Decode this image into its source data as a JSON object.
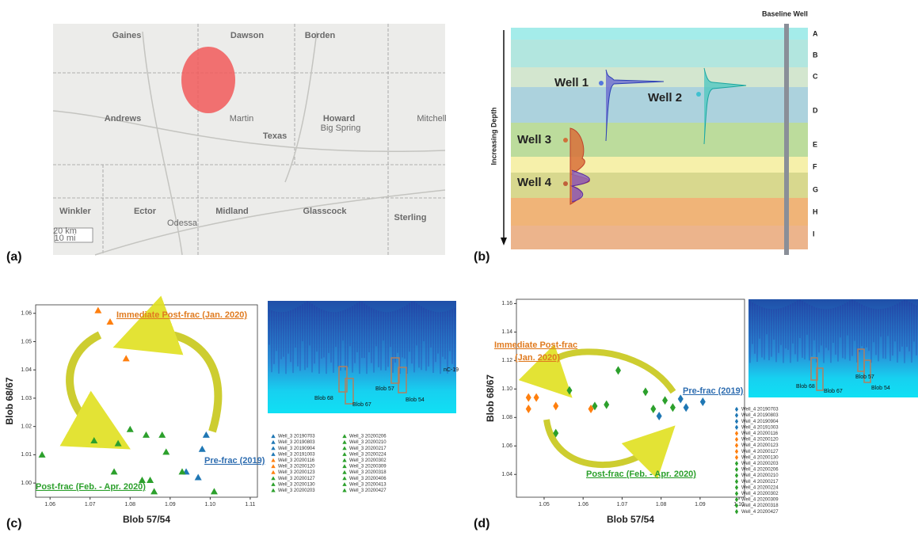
{
  "panel_labels": [
    "(a)",
    "(b)",
    "(c)",
    "(d)"
  ],
  "map": {
    "labels": [
      "Gaines",
      "Dawson",
      "Borden",
      "Andrews",
      "Martin",
      "Texas",
      "Howard",
      "Big Spring",
      "Mitchell",
      "Winkler",
      "Ector",
      "Midland",
      "Glasscock",
      "Sterling",
      "Odessa",
      "20 km",
      "10 mi"
    ]
  },
  "diagram": {
    "title": "Baseline Well",
    "axis_label": "Increasing Depth",
    "layers": [
      "A",
      "B",
      "C",
      "D",
      "E",
      "F",
      "G",
      "H",
      "I"
    ],
    "wells": [
      "Well 1",
      "Well 2",
      "Well 3",
      "Well 4"
    ]
  },
  "chart_data": [
    {
      "type": "scatter",
      "marker": "triangle",
      "xlabel": "Blob 57/54",
      "ylabel": "Blob 68/67",
      "xlim": [
        1.0564,
        1.1118
      ],
      "ylim": [
        0.995,
        1.063
      ],
      "xticks": [
        1.06,
        1.07,
        1.08,
        1.09,
        {
          "value": 1.1,
          "label": "1.10"
        },
        1.11
      ],
      "yticks": [
        {
          "value": 1,
          "label": "1.00"
        },
        1.01,
        1.02,
        1.03,
        1.04,
        1.05,
        1.06
      ],
      "inset_labels": [
        "Blob 68",
        "Blob 67",
        "Blob 57",
        "Blob 54",
        "nC-19"
      ],
      "annotations": [
        {
          "text": "Immediate Post-frac (Jan. 2020)",
          "color": "#e07b20"
        },
        {
          "text": "Pre-frac (2019)",
          "color": "#2e6db0"
        },
        {
          "text": "Post-frac (Feb. - Apr. 2020)",
          "color": "#2ca02c"
        }
      ],
      "series": [
        {
          "name": "Well_3 20190703",
          "color": "#1f77b4",
          "x": [
            1.099
          ],
          "values": [
            1.017
          ]
        },
        {
          "name": "Well_3 20190803",
          "color": "#1f77b4",
          "x": [
            1.098
          ],
          "values": [
            1.012
          ]
        },
        {
          "name": "Well_3 20190904",
          "color": "#1f77b4",
          "x": [
            1.094
          ],
          "values": [
            1.004
          ]
        },
        {
          "name": "Well_3 20191003",
          "color": "#1f77b4",
          "x": [
            1.097
          ],
          "values": [
            1.002
          ]
        },
        {
          "name": "Well_3 20200116",
          "color": "#ff7f0e",
          "x": [
            1.072
          ],
          "values": [
            1.061
          ]
        },
        {
          "name": "Well_3 20200120",
          "color": "#ff7f0e",
          "x": [
            1.075
          ],
          "values": [
            1.057
          ]
        },
        {
          "name": "Well_3 20200123",
          "color": "#ff7f0e",
          "x": [
            1.079
          ],
          "values": [
            1.044
          ]
        },
        {
          "name": "Well_3 20200127",
          "color": "#2ca02c",
          "x": [
            1.058
          ],
          "values": [
            1.01
          ]
        },
        {
          "name": "Well_3 20200130",
          "color": "#2ca02c",
          "x": [
            1.071
          ],
          "values": [
            1.015
          ]
        },
        {
          "name": "Well_3 20200203",
          "color": "#2ca02c",
          "x": [
            1.077
          ],
          "values": [
            1.014
          ]
        },
        {
          "name": "Well_3 20200206",
          "color": "#2ca02c",
          "x": [
            1.08
          ],
          "values": [
            1.019
          ]
        },
        {
          "name": "Well_3 20200210",
          "color": "#2ca02c",
          "x": [
            1.084
          ],
          "values": [
            1.017
          ]
        },
        {
          "name": "Well_3 20200217",
          "color": "#2ca02c",
          "x": [
            1.088
          ],
          "values": [
            1.017
          ]
        },
        {
          "name": "Well_3 20200224",
          "color": "#2ca02c",
          "x": [
            1.089
          ],
          "values": [
            1.011
          ]
        },
        {
          "name": "Well_3 20200302",
          "color": "#2ca02c",
          "x": [
            1.076
          ],
          "values": [
            1.004
          ]
        },
        {
          "name": "Well_3 20200309",
          "color": "#2ca02c",
          "x": [
            1.083
          ],
          "values": [
            1.001
          ]
        },
        {
          "name": "Well_3 20200318",
          "color": "#2ca02c",
          "x": [
            1.085
          ],
          "values": [
            1.001
          ]
        },
        {
          "name": "Well_3 20200406",
          "color": "#2ca02c",
          "x": [
            1.086
          ],
          "values": [
            0.997
          ]
        },
        {
          "name": "Well_3 20200413",
          "color": "#2ca02c",
          "x": [
            1.093
          ],
          "values": [
            1.004
          ]
        },
        {
          "name": "Well_3 20200427",
          "color": "#2ca02c",
          "x": [
            1.101
          ],
          "values": [
            0.997
          ]
        }
      ]
    },
    {
      "type": "scatter",
      "marker": "diamond",
      "xlabel": "Blob 57/54",
      "ylabel": "Blob 68/67",
      "xlim": [
        1.0429,
        1.1014
      ],
      "ylim": [
        1.024,
        1.163
      ],
      "xticks": [
        1.05,
        1.06,
        1.07,
        1.08,
        1.09,
        {
          "value": 1.1,
          "label": "1.10"
        }
      ],
      "yticks": [
        1.04,
        1.06,
        1.08,
        {
          "value": 1.1,
          "label": "1.10"
        },
        1.12,
        1.14,
        1.16
      ],
      "inset_labels": [
        "Blob 68",
        "Blob 67",
        "Blob 57",
        "Blob 54"
      ],
      "annotations": [
        {
          "text": "Immediate Post-frac",
          "color": "#e07b20"
        },
        {
          "text": "(Jan. 2020)",
          "color": "#e07b20"
        },
        {
          "text": "Pre-frac (2019)",
          "color": "#2e6db0"
        },
        {
          "text": "Post-frac (Feb. - Apr. 2020)",
          "color": "#2ca02c"
        }
      ],
      "series": [
        {
          "name": "Well_4 20190703",
          "color": "#1f77b4",
          "x": [
            1.0795
          ],
          "values": [
            1.081
          ]
        },
        {
          "name": "Well_4 20190803",
          "color": "#1f77b4",
          "x": [
            1.085
          ],
          "values": [
            1.093
          ]
        },
        {
          "name": "Well_4 20190904",
          "color": "#1f77b4",
          "x": [
            1.0864
          ],
          "values": [
            1.087
          ]
        },
        {
          "name": "Well_4 20191003",
          "color": "#1f77b4",
          "x": [
            1.0907
          ],
          "values": [
            1.091
          ]
        },
        {
          "name": "Well_4 20200116",
          "color": "#ff7f0e",
          "x": [
            1.046
          ],
          "values": [
            1.094
          ]
        },
        {
          "name": "Well_4 20200120",
          "color": "#ff7f0e",
          "x": [
            1.048
          ],
          "values": [
            1.094
          ]
        },
        {
          "name": "Well_4 20200123",
          "color": "#ff7f0e",
          "x": [
            1.046
          ],
          "values": [
            1.086
          ]
        },
        {
          "name": "Well_4 20200127",
          "color": "#ff7f0e",
          "x": [
            1.053
          ],
          "values": [
            1.088
          ]
        },
        {
          "name": "Well_4 20200130",
          "color": "#ff7f0e",
          "x": [
            1.062
          ],
          "values": [
            1.086
          ]
        },
        {
          "name": "Well_4 20200203",
          "color": "#2ca02c",
          "x": [
            1.053
          ],
          "values": [
            1.069
          ]
        },
        {
          "name": "Well_4 20200206",
          "color": "#2ca02c",
          "x": [
            1.0565
          ],
          "values": [
            1.099
          ]
        },
        {
          "name": "Well_4 20200210",
          "color": "#2ca02c",
          "x": [
            1.063
          ],
          "values": [
            1.088
          ]
        },
        {
          "name": "Well_4 20200217",
          "color": "#2ca02c",
          "x": [
            1.066
          ],
          "values": [
            1.089
          ]
        },
        {
          "name": "Well_4 20200224",
          "color": "#2ca02c",
          "x": [
            1.069
          ],
          "values": [
            1.113
          ]
        },
        {
          "name": "Well_4 20200302",
          "color": "#2ca02c",
          "x": [
            1.076
          ],
          "values": [
            1.098
          ]
        },
        {
          "name": "Well_4 20200309",
          "color": "#2ca02c",
          "x": [
            1.078
          ],
          "values": [
            1.086
          ]
        },
        {
          "name": "Well_4 20200318",
          "color": "#2ca02c",
          "x": [
            1.081
          ],
          "values": [
            1.092
          ]
        },
        {
          "name": "Well_4 20200427",
          "color": "#2ca02c",
          "x": [
            1.083
          ],
          "values": [
            1.087
          ]
        }
      ]
    }
  ]
}
